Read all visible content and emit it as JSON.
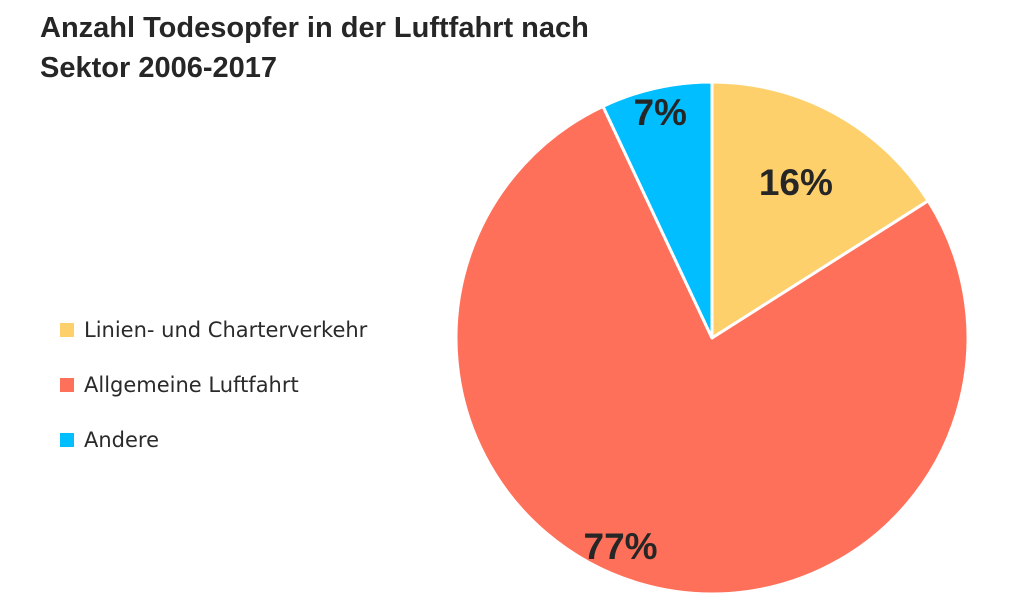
{
  "chart_data": {
    "type": "pie",
    "title": "Anzahl Todesopfer in der Luftfahrt nach Sektor 2006-2017",
    "title_lines": [
      "Anzahl Todesopfer in der Luftfahrt nach",
      "Sektor 2006-2017"
    ],
    "categories": [
      "Linien- und Charterverkehr",
      "Allgemeine Luftfahrt",
      "Andere"
    ],
    "values": [
      16,
      77,
      7
    ],
    "data_labels": [
      "16%",
      "77%",
      "7%"
    ],
    "colors": [
      "#FDD06B",
      "#FF705A",
      "#00BEFF"
    ],
    "start_angle": "12 o'clock",
    "direction": "clockwise",
    "legend_position": "left"
  }
}
